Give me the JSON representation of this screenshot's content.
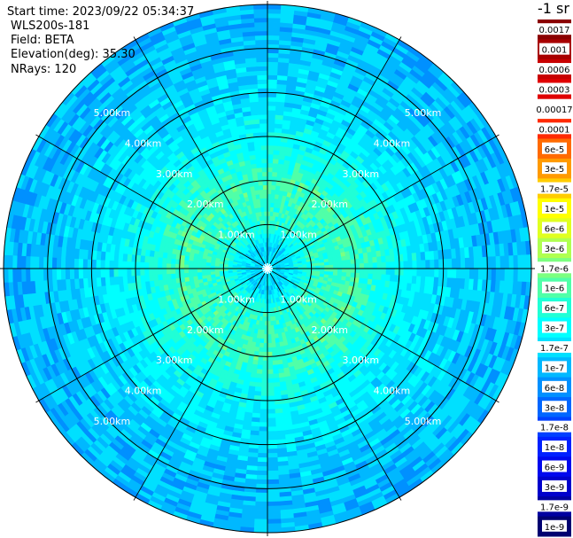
{
  "info": {
    "start_time": "Start time: 2023/09/22 05:34:37",
    "instrument": "WLS200s-181",
    "field": "Field: BETA",
    "elevation": "Elevation(deg): 35.30",
    "nrays": "NRays: 120"
  },
  "chart_data": {
    "type": "heatmap",
    "projection": "polar-ppi",
    "title": "",
    "field": "BETA",
    "elevation_deg": 35.3,
    "n_rays": 120,
    "range_km_max": 6.0,
    "range_rings_km": [
      1,
      2,
      3,
      4,
      5
    ],
    "range_ring_labels": [
      "1.00km",
      "2.00km",
      "3.00km",
      "4.00km",
      "5.00km"
    ],
    "azimuth_spokes_deg": [
      0,
      30,
      60,
      90,
      120,
      150,
      180,
      210,
      240,
      270,
      300,
      330
    ],
    "radial_profile": [
      {
        "range_km": 0.5,
        "value": 1.7e-07
      },
      {
        "range_km": 1.0,
        "value": 6e-07
      },
      {
        "range_km": 2.0,
        "value": 8e-07
      },
      {
        "range_km": 3.0,
        "value": 3e-07
      },
      {
        "range_km": 4.0,
        "value": 1.7e-07
      },
      {
        "range_km": 5.0,
        "value": 1.2e-07
      },
      {
        "range_km": 6.0,
        "value": 1e-07
      }
    ],
    "colorbar": {
      "unit_label": "-1 sr",
      "tick_labels": [
        "0.0017",
        "0.001",
        "0.0006",
        "0.0003",
        "0.00017",
        "0.0001",
        "6e-5",
        "3e-5",
        "1.7e-5",
        "1e-5",
        "6e-6",
        "3e-6",
        "1.7e-6",
        "1e-6",
        "6e-7",
        "3e-7",
        "1.7e-7",
        "1e-7",
        "6e-8",
        "3e-8",
        "1.7e-8",
        "1e-8",
        "6e-9",
        "3e-9",
        "1.7e-9",
        "1e-9"
      ],
      "colors": [
        "#8a0000",
        "#a80000",
        "#c80000",
        "#e00000",
        "#ffffff",
        "#ff2a00",
        "#ff6a00",
        "#ff9a00",
        "#ffcc00",
        "#ffff00",
        "#e0ff20",
        "#b0ff50",
        "#7cff80",
        "#50ffa8",
        "#20ffd6",
        "#00ffff",
        "#00e0ff",
        "#00b8ff",
        "#0090ff",
        "#0066ff",
        "#0040ff",
        "#0020ff",
        "#0008ee",
        "#0000cc",
        "#0000a0",
        "#000070"
      ]
    }
  }
}
